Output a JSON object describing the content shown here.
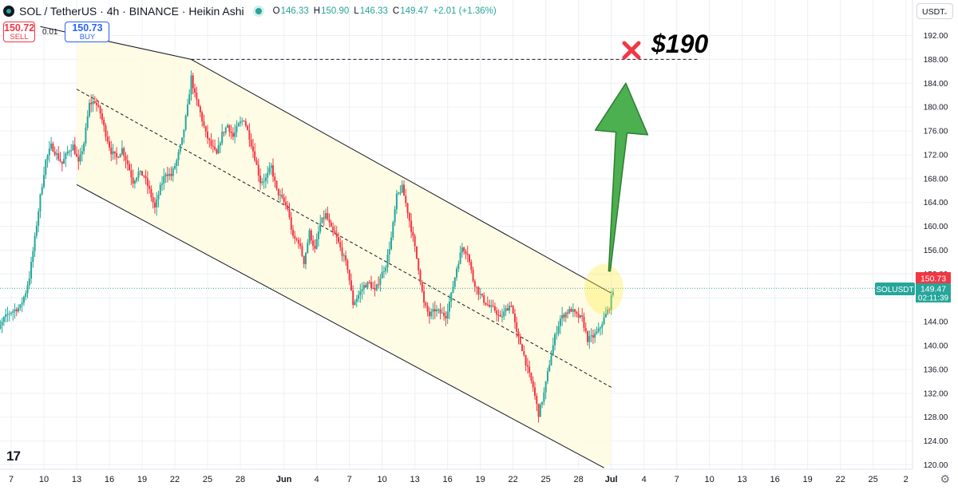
{
  "header": {
    "title": "SOL / TetherUS · 4h · BINANCE · Heikin Ashi",
    "o_label": "O",
    "o_value": "146.33",
    "h_label": "H",
    "h_value": "150.90",
    "l_label": "L",
    "l_value": "146.33",
    "c_label": "C",
    "c_value": "149.47",
    "change": "+2.01 (+1.36%)"
  },
  "trade": {
    "sell_price": "150.72",
    "sell_label": "SELL",
    "spread": "0.01",
    "buy_price": "150.73",
    "buy_label": "BUY"
  },
  "currency": "USDT",
  "annotation": {
    "target_text": "$190",
    "target_price": 188
  },
  "tags": {
    "symbol": "SOLUSDT",
    "ask_price": "150.73",
    "last_price": "149.47",
    "countdown": "02:11:39"
  },
  "colors": {
    "up": "#26a69a",
    "down": "#f23645",
    "channel_fill": "#fffbe0",
    "arrow": "#4caf50",
    "cross": "#f23645",
    "price_line": "#26a69a"
  },
  "chart_data": {
    "type": "candlestick",
    "style": "Heikin Ashi",
    "y_range": [
      120,
      194
    ],
    "y_ticks": [
      120,
      124,
      128,
      132,
      136,
      140,
      144,
      148,
      152,
      156,
      160,
      164,
      168,
      172,
      176,
      180,
      184,
      188,
      192
    ],
    "y_tick_labels": [
      "120.00",
      "124.00",
      "128.00",
      "132.00",
      "136.00",
      "140.00",
      "144.00",
      "148.00",
      "152.00",
      "156.00",
      "160.00",
      "164.00",
      "168.00",
      "172.00",
      "176.00",
      "180.00",
      "184.00",
      "188.00",
      "192.00"
    ],
    "x_tick_labels": [
      "7",
      "10",
      "13",
      "16",
      "19",
      "22",
      "25",
      "28",
      "Jun",
      "4",
      "7",
      "10",
      "13",
      "16",
      "19",
      "22",
      "25",
      "28",
      "Jul",
      "4",
      "7",
      "10",
      "13",
      "16",
      "19",
      "22",
      "25",
      "2"
    ],
    "x_tick_dates": [
      "May 7",
      "May 10",
      "May 13",
      "May 16",
      "May 19",
      "May 22",
      "May 25",
      "May 28",
      "Jun 1",
      "Jun 4",
      "Jun 7",
      "Jun 10",
      "Jun 13",
      "Jun 16",
      "Jun 19",
      "Jun 22",
      "Jun 25",
      "Jun 28",
      "Jul 1",
      "Jul 4",
      "Jul 7",
      "Jul 10",
      "Jul 13",
      "Jul 16",
      "Jul 19",
      "Jul 22",
      "Jul 25",
      "Jul 28"
    ],
    "grid": true,
    "last_price": 149.47,
    "anchors": [
      [
        "May 5 00:00",
        145.5
      ],
      [
        "May 5 12:00",
        143.5
      ],
      [
        "May 5 20:00",
        142.5
      ],
      [
        "May 6 08:00",
        144.5
      ],
      [
        "May 6 20:00",
        145.5
      ],
      [
        "May 7 08:00",
        146.0
      ],
      [
        "May 7 20:00",
        146.5
      ],
      [
        "May 8 08:00",
        149.0
      ],
      [
        "May 8 16:00",
        151.5
      ],
      [
        "May 9 04:00",
        158.0
      ],
      [
        "May 9 16:00",
        165.0
      ],
      [
        "May 10 04:00",
        171.0
      ],
      [
        "May 10 16:00",
        173.5
      ],
      [
        "May 11 04:00",
        172.0
      ],
      [
        "May 11 16:00",
        170.5
      ],
      [
        "May 12 04:00",
        172.5
      ],
      [
        "May 12 16:00",
        173.5
      ],
      [
        "May 13 04:00",
        170.5
      ],
      [
        "May 13 16:00",
        174.0
      ],
      [
        "May 14 04:00",
        180.5
      ],
      [
        "May 14 16:00",
        181.0
      ],
      [
        "May 15 04:00",
        179.0
      ],
      [
        "May 15 16:00",
        175.5
      ],
      [
        "May 16 04:00",
        172.5
      ],
      [
        "May 16 16:00",
        171.5
      ],
      [
        "May 17 04:00",
        173.0
      ],
      [
        "May 17 16:00",
        170.5
      ],
      [
        "May 18 04:00",
        167.5
      ],
      [
        "May 18 16:00",
        169.0
      ],
      [
        "May 19 04:00",
        168.5
      ],
      [
        "May 19 16:00",
        166.0
      ],
      [
        "May 20 04:00",
        163.0
      ],
      [
        "May 20 16:00",
        166.5
      ],
      [
        "May 21 04:00",
        169.0
      ],
      [
        "May 21 16:00",
        168.5
      ],
      [
        "May 22 04:00",
        171.0
      ],
      [
        "May 22 16:00",
        174.5
      ],
      [
        "May 23 04:00",
        180.0
      ],
      [
        "May 23 12:00",
        185.0
      ],
      [
        "May 23 20:00",
        182.0
      ],
      [
        "May 24 08:00",
        179.0
      ],
      [
        "May 24 20:00",
        175.5
      ],
      [
        "May 25 08:00",
        173.5
      ],
      [
        "May 25 20:00",
        172.0
      ],
      [
        "May 26 08:00",
        175.5
      ],
      [
        "May 26 20:00",
        177.0
      ],
      [
        "May 27 08:00",
        175.0
      ],
      [
        "May 27 20:00",
        177.0
      ],
      [
        "May 28 08:00",
        178.0
      ],
      [
        "May 28 20:00",
        175.0
      ],
      [
        "May 29 08:00",
        171.5
      ],
      [
        "May 29 20:00",
        167.5
      ],
      [
        "May 30 08:00",
        168.0
      ],
      [
        "May 30 20:00",
        170.0
      ],
      [
        "May 31 08:00",
        166.0
      ],
      [
        "May 31 20:00",
        164.5
      ],
      [
        "Jun 1 08:00",
        163.0
      ],
      [
        "Jun 1 20:00",
        158.0
      ],
      [
        "Jun 2 08:00",
        157.5
      ],
      [
        "Jun 2 20:00",
        154.0
      ],
      [
        "Jun 3 08:00",
        159.0
      ],
      [
        "Jun 3 20:00",
        156.0
      ],
      [
        "Jun 4 08:00",
        160.5
      ],
      [
        "Jun 4 20:00",
        162.0
      ],
      [
        "Jun 5 08:00",
        159.5
      ],
      [
        "Jun 5 20:00",
        158.0
      ],
      [
        "Jun 6 08:00",
        155.5
      ],
      [
        "Jun 6 20:00",
        153.0
      ],
      [
        "Jun 7 08:00",
        147.0
      ],
      [
        "Jun 7 20:00",
        148.5
      ],
      [
        "Jun 8 08:00",
        150.0
      ],
      [
        "Jun 8 20:00",
        150.5
      ],
      [
        "Jun 9 08:00",
        149.0
      ],
      [
        "Jun 9 20:00",
        151.5
      ],
      [
        "Jun 10 08:00",
        153.5
      ],
      [
        "Jun 10 20:00",
        158.0
      ],
      [
        "Jun 11 08:00",
        165.0
      ],
      [
        "Jun 11 20:00",
        166.5
      ],
      [
        "Jun 12 08:00",
        162.5
      ],
      [
        "Jun 12 20:00",
        158.0
      ],
      [
        "Jun 13 08:00",
        153.0
      ],
      [
        "Jun 13 20:00",
        147.0
      ],
      [
        "Jun 14 08:00",
        145.0
      ],
      [
        "Jun 14 20:00",
        146.0
      ],
      [
        "Jun 15 08:00",
        145.5
      ],
      [
        "Jun 15 20:00",
        145.0
      ],
      [
        "Jun 16 08:00",
        148.5
      ],
      [
        "Jun 16 20:00",
        153.0
      ],
      [
        "Jun 17 08:00",
        156.5
      ],
      [
        "Jun 17 20:00",
        155.5
      ],
      [
        "Jun 18 08:00",
        151.0
      ],
      [
        "Jun 18 20:00",
        149.0
      ],
      [
        "Jun 19 08:00",
        147.5
      ],
      [
        "Jun 19 20:00",
        146.5
      ],
      [
        "Jun 20 08:00",
        146.0
      ],
      [
        "Jun 20 20:00",
        144.5
      ],
      [
        "Jun 21 08:00",
        146.0
      ],
      [
        "Jun 21 20:00",
        147.0
      ],
      [
        "Jun 22 08:00",
        142.0
      ],
      [
        "Jun 22 20:00",
        139.5
      ],
      [
        "Jun 23 08:00",
        136.0
      ],
      [
        "Jun 23 20:00",
        133.0
      ],
      [
        "Jun 24 08:00",
        128.5
      ],
      [
        "Jun 24 20:00",
        132.0
      ],
      [
        "Jun 25 08:00",
        137.0
      ],
      [
        "Jun 25 20:00",
        141.5
      ],
      [
        "Jun 26 08:00",
        144.5
      ],
      [
        "Jun 26 20:00",
        145.5
      ],
      [
        "Jun 27 08:00",
        146.0
      ],
      [
        "Jun 27 20:00",
        145.0
      ],
      [
        "Jun 28 08:00",
        144.5
      ],
      [
        "Jun 28 20:00",
        141.0
      ],
      [
        "Jun 29 08:00",
        141.5
      ],
      [
        "Jun 29 20:00",
        142.5
      ],
      [
        "Jun 30 08:00",
        144.5
      ],
      [
        "Jun 30 20:00",
        146.5
      ],
      [
        "Jul 1 04:00",
        149.47
      ]
    ],
    "channel": {
      "upper": [
        [
          "May 9 16:00",
          193.5
        ],
        [
          "May 23 12:00",
          188.0
        ],
        [
          "Jul 1 00:00",
          148.8
        ]
      ],
      "middle": [
        [
          "May 13 00:00",
          183.0
        ],
        [
          "Jul 1 00:00",
          133.0
        ]
      ],
      "lower": [
        [
          "May 13 00:00",
          167.0
        ],
        [
          "Jun 30 08:00",
          119.5
        ]
      ],
      "fill_end_date": "Jul 1 00:00"
    },
    "target_line": {
      "price": 188.0,
      "from": "May 23 12:00",
      "to": "Jul 9 00:00"
    },
    "arrow": {
      "from": [
        "Jun 30 20:00",
        152.5
      ],
      "to": [
        "Jul 2 08:00",
        184.0
      ]
    },
    "highlight": {
      "center": [
        "Jun 30 08:00",
        149.5
      ],
      "price_radius": 4.2
    }
  }
}
